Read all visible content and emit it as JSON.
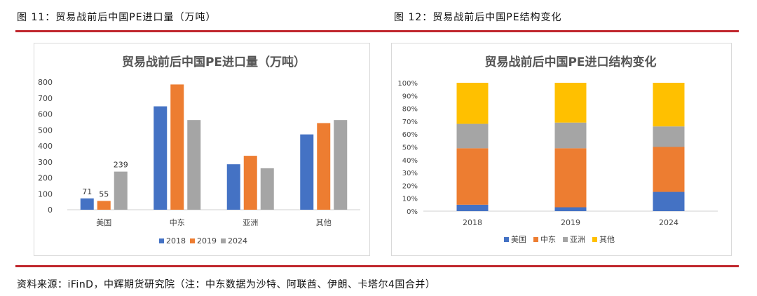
{
  "captions": {
    "left": "图 11：贸易战前后中国PE进口量（万吨）",
    "right": "图 12：贸易战前后中国PE结构变化"
  },
  "colors": {
    "rule": "#c0272d",
    "s2018": "#4472c4",
    "s2019": "#ed7d31",
    "s2024": "#a5a5a5",
    "other": "#ffc000"
  },
  "source": "资料来源：iFinD，中辉期货研究院（注：中东数据为沙特、阿联酋、伊朗、卡塔尔4国合并）",
  "chart_data": [
    {
      "type": "bar",
      "title": "贸易战前后中国PE进口量（万吨）",
      "categories": [
        "美国",
        "中东",
        "亚洲",
        "其他"
      ],
      "series": [
        {
          "name": "2018",
          "values": [
            71,
            648,
            285,
            472
          ]
        },
        {
          "name": "2019",
          "values": [
            55,
            785,
            338,
            543
          ]
        },
        {
          "name": "2024",
          "values": [
            239,
            562,
            260,
            562
          ]
        }
      ],
      "data_labels": [
        [
          71,
          55,
          239
        ],
        [
          null,
          null,
          null
        ],
        [
          null,
          null,
          null
        ],
        [
          null,
          null,
          null
        ]
      ],
      "ylim": [
        0,
        800
      ],
      "yticks": [
        "0",
        "100",
        "200",
        "300",
        "400",
        "500",
        "600",
        "700",
        "800"
      ],
      "legend": "bottom",
      "grid": false
    },
    {
      "type": "bar",
      "stacked": true,
      "title": "贸易战前后中国PE进口结构变化",
      "categories": [
        "2018",
        "2019",
        "2024"
      ],
      "series": [
        {
          "name": "美国",
          "values": [
            5,
            3,
            15
          ]
        },
        {
          "name": "中东",
          "values": [
            44,
            46,
            35
          ]
        },
        {
          "name": "亚洲",
          "values": [
            19,
            20,
            16
          ]
        },
        {
          "name": "其他",
          "values": [
            32,
            31,
            34
          ]
        }
      ],
      "ylim": [
        0,
        100
      ],
      "yticks": [
        "0%",
        "10%",
        "20%",
        "30%",
        "40%",
        "50%",
        "60%",
        "70%",
        "80%",
        "90%",
        "100%"
      ],
      "legend": "bottom",
      "grid": false
    }
  ]
}
